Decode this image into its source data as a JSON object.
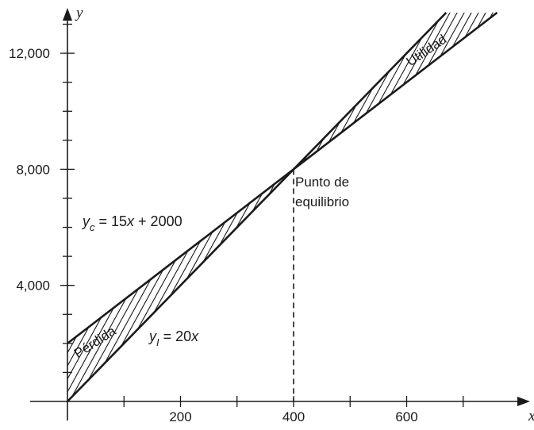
{
  "chart_data": {
    "type": "line",
    "x_axis": {
      "label": "x",
      "range": [
        0,
        800
      ],
      "ticks": [
        100,
        200,
        300,
        400,
        500,
        600,
        700
      ],
      "tick_labels": [
        {
          "value": 200,
          "text": "200"
        },
        {
          "value": 400,
          "text": "400"
        },
        {
          "value": 600,
          "text": "600"
        }
      ]
    },
    "y_axis": {
      "label": "y",
      "range": [
        0,
        14000
      ],
      "ticks": [
        1000,
        2000,
        3000,
        4000,
        5000,
        6000,
        7000,
        8000,
        9000,
        10000,
        11000,
        12000,
        13000
      ],
      "tick_labels": [
        {
          "value": 4000,
          "text": "4,000"
        },
        {
          "value": 8000,
          "text": "8,000"
        },
        {
          "value": 12000,
          "text": "12,000"
        }
      ]
    },
    "series": [
      {
        "name": "cost",
        "slope": 15,
        "intercept": 2000,
        "x": [
          0,
          760
        ],
        "y": [
          2000,
          13400
        ]
      },
      {
        "name": "income",
        "slope": 20,
        "intercept": 0,
        "x": [
          0,
          670
        ],
        "y": [
          0,
          13400
        ]
      }
    ],
    "labels": {
      "cost_eq": {
        "base": "y",
        "sub": "c",
        "rest": " = 15",
        "var2": "x",
        "tail": " + 2000"
      },
      "income_eq": {
        "base": "y",
        "sub": "I",
        "rest": " = 20",
        "var2": "x"
      },
      "loss": "Pérdida",
      "profit": "Utilidad",
      "break_even_line1": "Punto de",
      "break_even_line2": "equilibrio"
    },
    "break_even": {
      "x": 400,
      "y": 8000
    },
    "grid": false
  }
}
